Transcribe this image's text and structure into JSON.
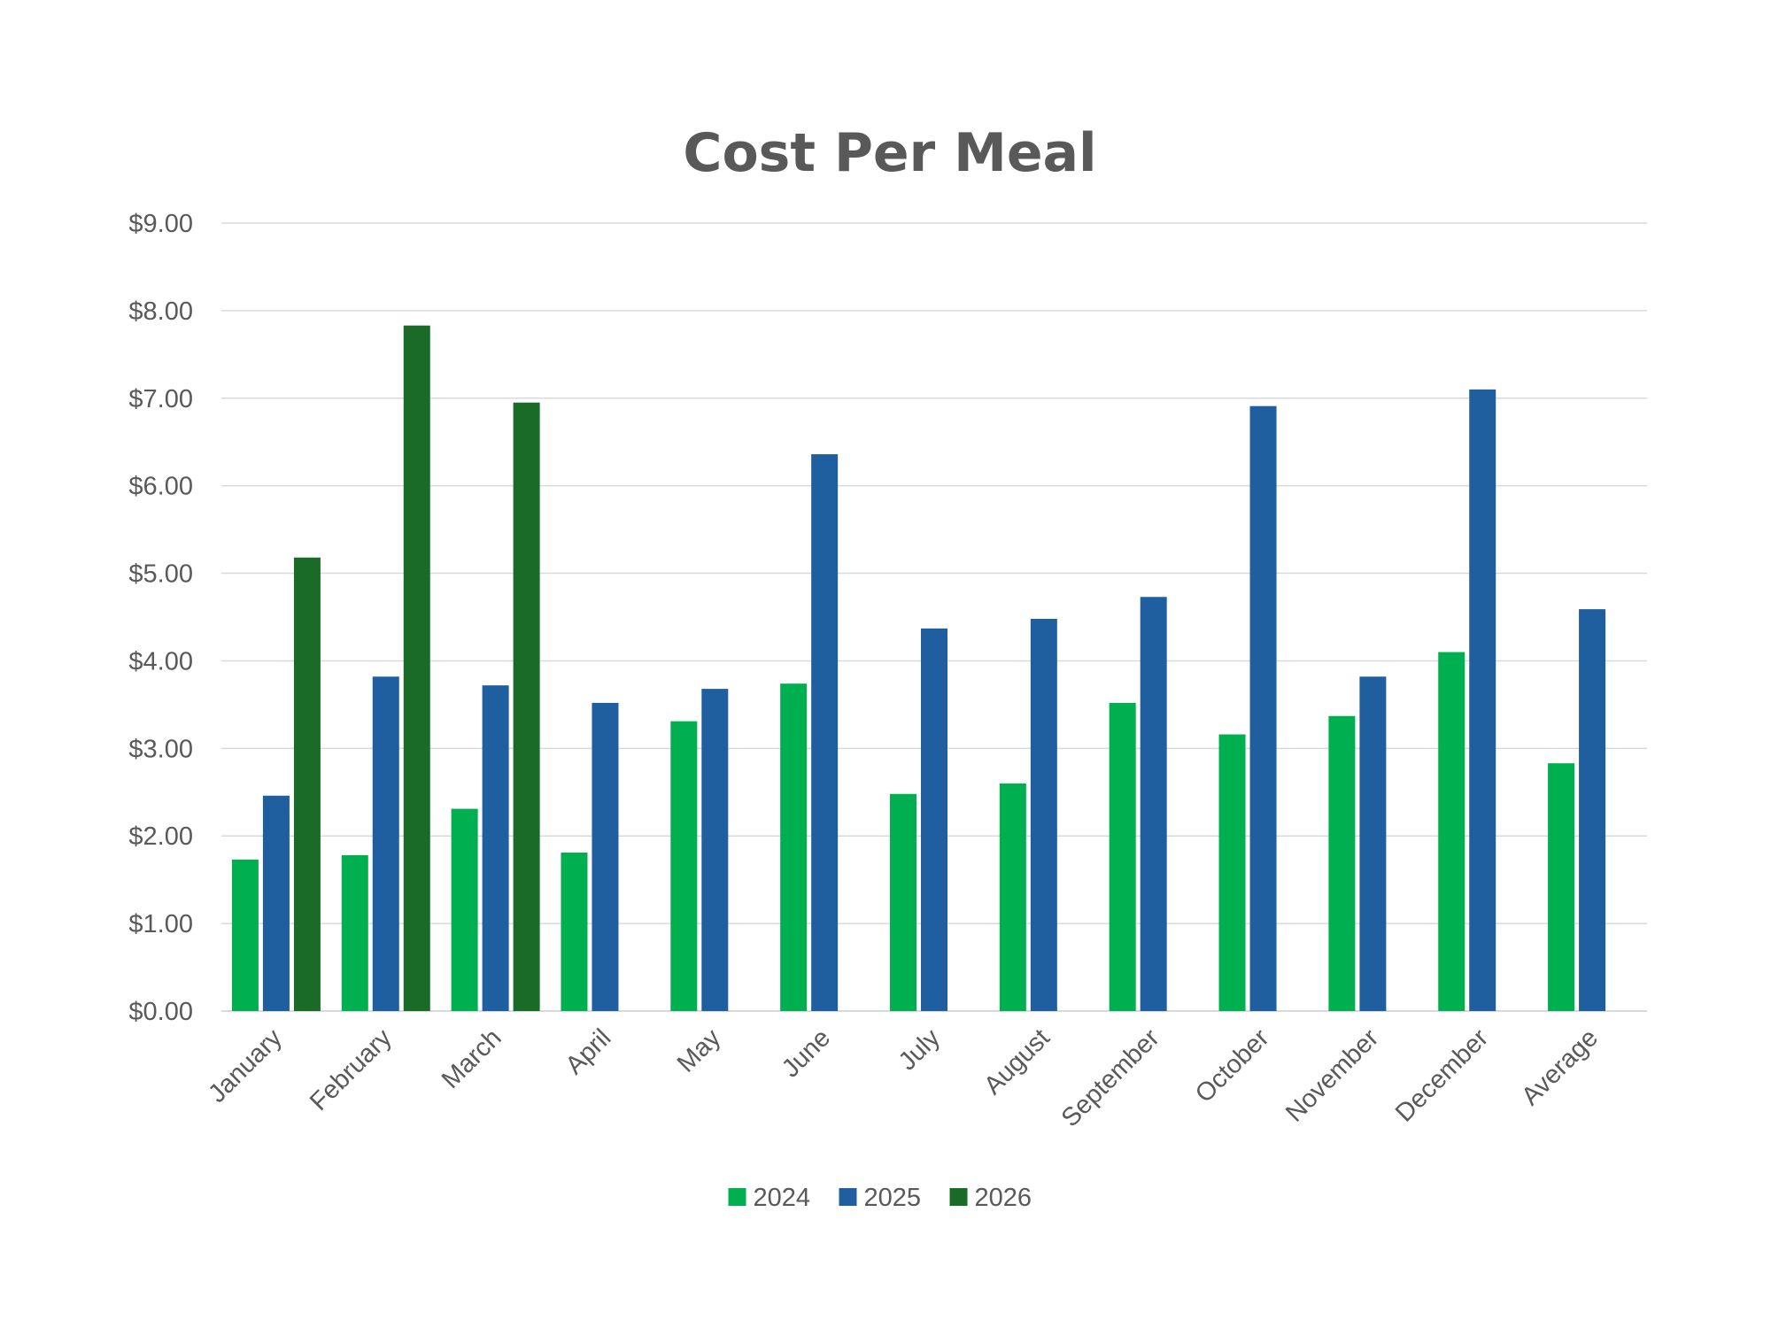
{
  "chart_data": {
    "type": "bar",
    "title": "Cost Per Meal",
    "xlabel": "",
    "ylabel": "",
    "ylim": [
      0,
      9
    ],
    "y_tick_step": 1,
    "y_tick_format": "$0.00",
    "grid": true,
    "legend_position": "bottom",
    "categories": [
      "January",
      "February",
      "March",
      "April",
      "May",
      "June",
      "July",
      "August",
      "September",
      "October",
      "November",
      "December",
      "Average"
    ],
    "series": [
      {
        "name": "2024",
        "color": "#00b050",
        "values": [
          1.73,
          1.78,
          2.31,
          1.81,
          3.31,
          3.74,
          2.48,
          2.6,
          3.52,
          3.16,
          3.37,
          4.1,
          2.83
        ]
      },
      {
        "name": "2025",
        "color": "#1f5f9f",
        "values": [
          2.46,
          3.82,
          3.72,
          3.52,
          3.68,
          6.36,
          4.37,
          4.48,
          4.73,
          6.91,
          3.82,
          7.1,
          4.59
        ]
      },
      {
        "name": "2026",
        "color": "#1a6b28",
        "values": [
          5.18,
          7.83,
          6.95,
          null,
          null,
          null,
          null,
          null,
          null,
          null,
          null,
          null,
          null
        ]
      }
    ]
  }
}
